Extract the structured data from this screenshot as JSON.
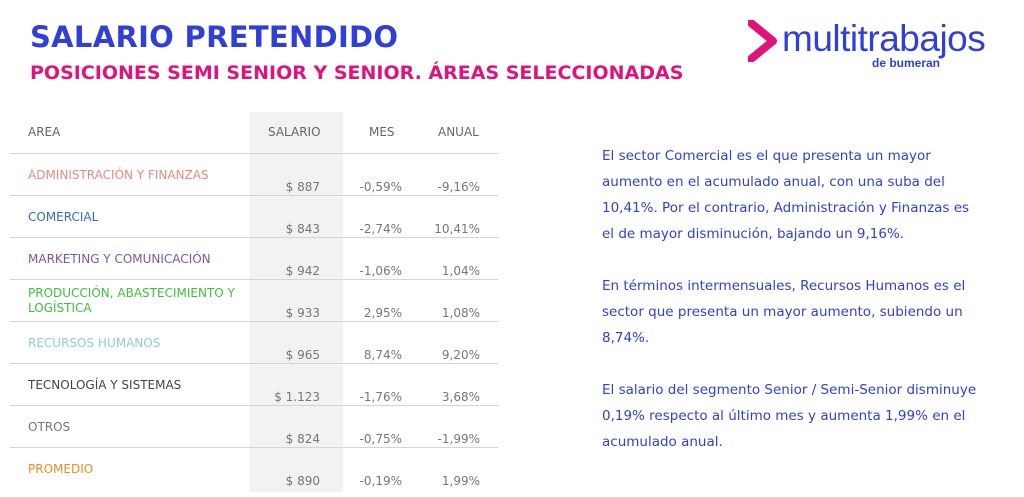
{
  "header": {
    "title": "SALARIO PRETENDIDO",
    "subtitle": "POSICIONES SEMI SENIOR Y SENIOR. ÁREAS SELECCIONADAS"
  },
  "logo": {
    "name": "multitrabajos",
    "sub": "de bumeran",
    "mark_icon": "chevron-right-icon",
    "mark_color": "#e0137d"
  },
  "colors": {
    "title": "#2f3fd8",
    "subtitle": "#e0137d",
    "text": "#2f3fd8"
  },
  "table": {
    "headers": {
      "area": "AREA",
      "salario": "SALARIO",
      "mes": "MES",
      "anual": "ANUAL"
    },
    "rows": [
      {
        "area": "ADMINISTRACIÓN Y FINANZAS",
        "color": "#e8897f",
        "salario": "$ 887",
        "mes": "-0,59%",
        "anual": "-9,16%"
      },
      {
        "area": "COMERCIAL",
        "color": "#3b66c4",
        "salario": "$ 843",
        "mes": "-2,74%",
        "anual": "10,41%"
      },
      {
        "area": "MARKETING Y COMUNICACIÓN",
        "color": "#7d56a8",
        "salario": "$ 942",
        "mes": "-1,06%",
        "anual": "1,04%"
      },
      {
        "area": "PRODUCCIÓN, ABASTECIMIENTO Y LOGÍSTICA",
        "color": "#3cc13c",
        "salario": "$ 933",
        "mes": "2,95%",
        "anual": "1,08%"
      },
      {
        "area": "RECURSOS HUMANOS",
        "color": "#8fcbe0",
        "salario": "$ 965",
        "mes": "8,74%",
        "anual": "9,20%"
      },
      {
        "area": "TECNOLOGÍA Y SISTEMAS",
        "color": "#444444",
        "salario": "$ 1.123",
        "mes": "-1,76%",
        "anual": "3,68%"
      },
      {
        "area": "OTROS",
        "color": "#777777",
        "salario": "$ 824",
        "mes": "-0,75%",
        "anual": "-1,99%"
      },
      {
        "area": "PROMEDIO",
        "color": "#f08a24",
        "salario": "$ 890",
        "mes": "-0,19%",
        "anual": "1,99%"
      }
    ]
  },
  "text": {
    "p1": "El sector Comercial es el que presenta un mayor aumento en el acumulado anual, con una suba del 10,41%. Por el contrario, Administración y Finanzas es el de mayor disminución, bajando un 9,16%.",
    "p2": "En términos intermensuales, Recursos Humanos es el sector que presenta un mayor aumento, subiendo un 8,74%.",
    "p3": "El salario del segmento Senior / Semi-Senior disminuye 0,19% respecto al último mes y aumenta 1,99% en el acumulado anual."
  }
}
